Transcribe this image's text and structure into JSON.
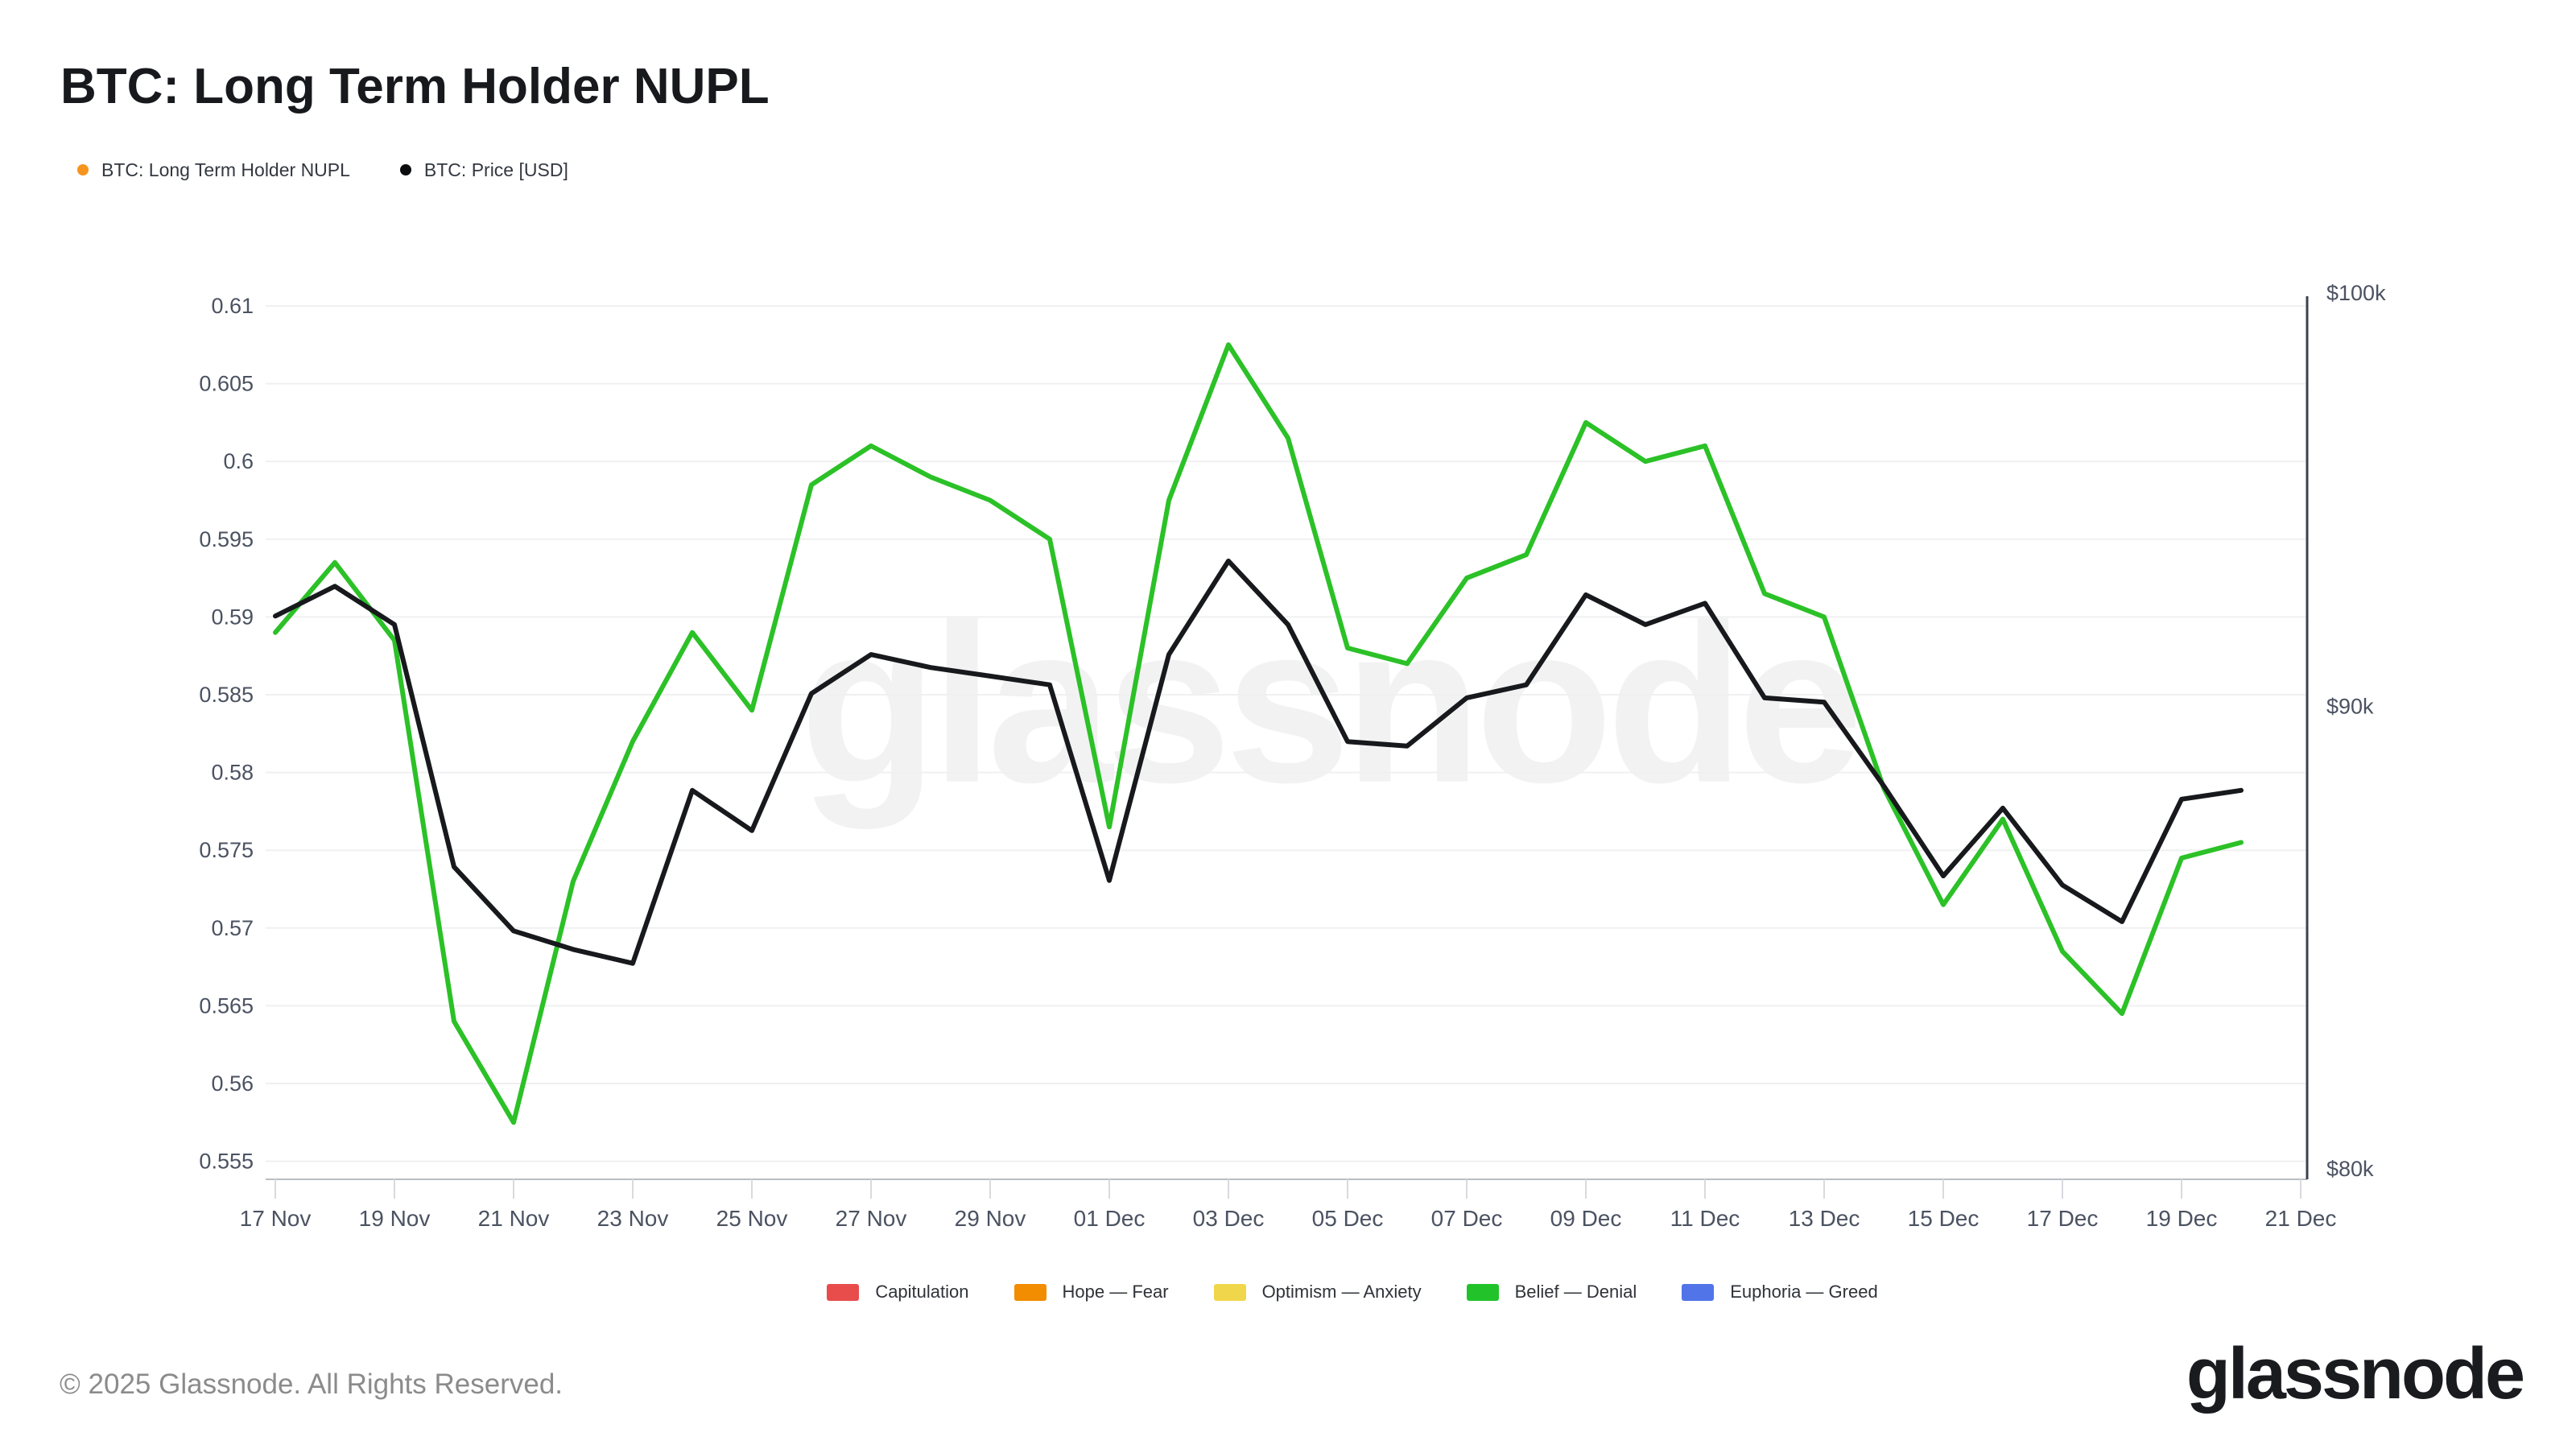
{
  "header": {
    "title": "BTC: Long Term Holder NUPL",
    "series_legend": [
      {
        "label": "BTC: Long Term Holder NUPL",
        "color": "#f7941e"
      },
      {
        "label": "BTC: Price [USD]",
        "color": "#0b0c0e"
      }
    ]
  },
  "chart": {
    "watermark": "glassnode"
  },
  "chart_data": {
    "type": "line",
    "title": "BTC: Long Term Holder NUPL",
    "x": [
      "17 Nov",
      "18 Nov",
      "19 Nov",
      "20 Nov",
      "21 Nov",
      "22 Nov",
      "23 Nov",
      "24 Nov",
      "25 Nov",
      "26 Nov",
      "27 Nov",
      "28 Nov",
      "29 Nov",
      "30 Nov",
      "01 Dec",
      "02 Dec",
      "03 Dec",
      "04 Dec",
      "05 Dec",
      "06 Dec",
      "07 Dec",
      "08 Dec",
      "09 Dec",
      "10 Dec",
      "11 Dec",
      "12 Dec",
      "13 Dec",
      "14 Dec",
      "15 Dec",
      "16 Dec",
      "17 Dec",
      "18 Dec",
      "19 Dec",
      "20 Dec"
    ],
    "x_tick_labels": [
      "17 Nov",
      "19 Nov",
      "21 Nov",
      "23 Nov",
      "25 Nov",
      "27 Nov",
      "29 Nov",
      "01 Dec",
      "03 Dec",
      "05 Dec",
      "07 Dec",
      "09 Dec",
      "11 Dec",
      "13 Dec",
      "15 Dec",
      "17 Dec",
      "19 Dec",
      "21 Dec"
    ],
    "series": [
      {
        "name": "BTC: Long Term Holder NUPL",
        "axis": "left",
        "color": "#2bc127",
        "values": [
          0.589,
          0.5935,
          0.5885,
          0.564,
          0.5575,
          0.573,
          0.582,
          0.589,
          0.584,
          0.5985,
          0.601,
          0.599,
          0.5975,
          0.595,
          0.5765,
          0.5975,
          0.6075,
          0.6015,
          0.588,
          0.587,
          0.5925,
          0.594,
          0.6025,
          0.6,
          0.601,
          0.5915,
          0.59,
          0.579,
          0.5715,
          0.577,
          0.5685,
          0.5645,
          0.5745,
          0.5755
        ]
      },
      {
        "name": "BTC: Price [USD]",
        "axis": "right",
        "color": "#17191d",
        "values": [
          92.1,
          92.8,
          91.9,
          86.4,
          85.0,
          84.6,
          84.3,
          88.1,
          87.2,
          90.3,
          91.2,
          90.9,
          90.7,
          90.5,
          86.1,
          91.2,
          93.4,
          91.9,
          89.2,
          89.1,
          90.2,
          90.5,
          92.6,
          91.9,
          92.4,
          90.2,
          90.1,
          88.2,
          86.2,
          87.7,
          86.0,
          85.2,
          87.9,
          88.1
        ]
      }
    ],
    "left_axis": {
      "ticks": [
        "0.61",
        "0.605",
        "0.6",
        "0.595",
        "0.59",
        "0.585",
        "0.58",
        "0.575",
        "0.57",
        "0.565",
        "0.56",
        "0.555"
      ],
      "min": 0.555,
      "max": 0.61,
      "grid": true
    },
    "right_axis": {
      "scale": "log",
      "unit": "USD",
      "ticks": [
        {
          "label": "$100k",
          "value": 100
        },
        {
          "label": "$90k",
          "value": 90
        },
        {
          "label": "$80k",
          "value": 80
        }
      ]
    },
    "legend_position": "top-left",
    "grid": "horizontal-only"
  },
  "zone_legend": [
    {
      "label": "Capitulation",
      "color": "#e84d4c"
    },
    {
      "label": "Hope — Fear",
      "color": "#f28c00"
    },
    {
      "label": "Optimism — Anxiety",
      "color": "#f0d64b"
    },
    {
      "label": "Belief — Denial",
      "color": "#22c32a"
    },
    {
      "label": "Euphoria — Greed",
      "color": "#5175e8"
    }
  ],
  "footer": {
    "copyright": "© 2025 Glassnode. All Rights Reserved.",
    "logo": "glassnode"
  }
}
